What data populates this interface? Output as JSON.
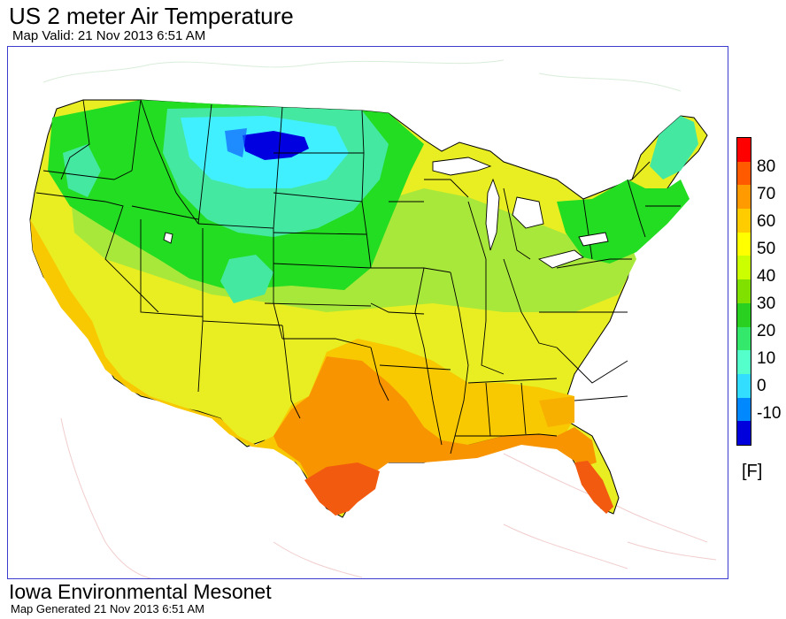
{
  "title": "US 2 meter Air Temperature",
  "subtitle": "Map Valid: 21 Nov 2013 6:51 AM",
  "footer": {
    "organization": "Iowa Environmental Mesonet",
    "generated": "Map Generated 21 Nov 2013 6:51 AM"
  },
  "legend": {
    "unit": "[F]",
    "ticks": [
      "80",
      "70",
      "60",
      "50",
      "40",
      "30",
      "20",
      "10",
      "0",
      "-10"
    ],
    "colors": [
      "#ff0000",
      "#ff5a00",
      "#ff9a00",
      "#ffcc00",
      "#ffff00",
      "#ccff00",
      "#80e000",
      "#2ad020",
      "#33e86a",
      "#55ffcc",
      "#33ddff",
      "#0088ff",
      "#0000dd"
    ]
  },
  "map": {
    "region": "Contiguous United States",
    "colors": {
      "very_cold": "#0000e0",
      "cold": "#40f0ff",
      "cool": "#44e8a0",
      "mild": "#22dd22",
      "moderate": "#a8e83a",
      "warm": "#e8ee22",
      "warmer": "#f8c800",
      "hot": "#f89400",
      "hottest": "#f25a10"
    }
  }
}
